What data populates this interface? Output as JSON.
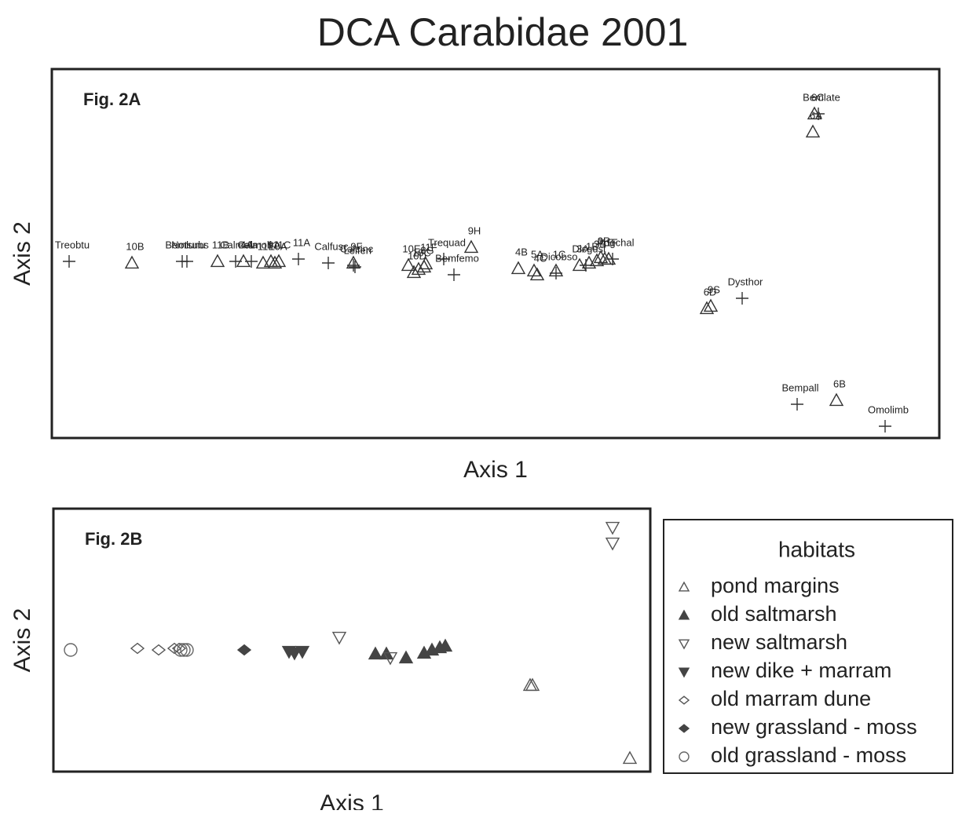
{
  "title": "DCA Carabidae 2001",
  "chart_data": [
    {
      "type": "scatter",
      "annotation": "Fig. 2A",
      "x_label": "Axis 1",
      "y_label": "Axis 2",
      "xlim": [
        0,
        1130
      ],
      "ylim": [
        0,
        470
      ],
      "color": "#333333",
      "points": [
        {
          "label": "Treobtu",
          "marker": "plus",
          "x": 22,
          "y": 225
        },
        {
          "label": "10B",
          "marker": "triangle-open",
          "x": 102,
          "y": 223
        },
        {
          "label": "Bemlunu",
          "marker": "plus",
          "x": 166,
          "y": 225
        },
        {
          "label": "Notsubs",
          "marker": "plus",
          "x": 172,
          "y": 225
        },
        {
          "label": "11B",
          "marker": "triangle-open",
          "x": 211,
          "y": 225
        },
        {
          "label": "Calmela",
          "marker": "plus",
          "x": 234,
          "y": 225
        },
        {
          "label": "4A",
          "marker": "triangle-open",
          "x": 244,
          "y": 225
        },
        {
          "label": "Calmoll",
          "marker": "plus",
          "x": 254,
          "y": 225
        },
        {
          "label": "11E",
          "marker": "triangle-open",
          "x": 269,
          "y": 223
        },
        {
          "label": "9A",
          "marker": "triangle-open",
          "x": 279,
          "y": 225
        },
        {
          "label": "10A",
          "marker": "triangle-open",
          "x": 284,
          "y": 223
        },
        {
          "label": "11C",
          "marker": "triangle-open",
          "x": 289,
          "y": 225
        },
        {
          "label": "11A",
          "marker": "plus",
          "x": 314,
          "y": 228
        },
        {
          "label": "Calfusc",
          "marker": "plus",
          "x": 352,
          "y": 223
        },
        {
          "label": "9F",
          "marker": "triangle-open",
          "x": 384,
          "y": 223
        },
        {
          "label": "Calcinc",
          "marker": "plus",
          "x": 384,
          "y": 220
        },
        {
          "label": "Leiferr",
          "marker": "plus",
          "x": 386,
          "y": 218
        },
        {
          "label": "10E",
          "marker": "triangle-open",
          "x": 454,
          "y": 220
        },
        {
          "label": "10D",
          "marker": "triangle-open",
          "x": 461,
          "y": 211
        },
        {
          "label": "10C",
          "marker": "triangle-open",
          "x": 467,
          "y": 215
        },
        {
          "label": "8G",
          "marker": "triangle-open",
          "x": 474,
          "y": 218
        },
        {
          "label": "11F",
          "marker": "triangle-open",
          "x": 476,
          "y": 222
        },
        {
          "label": "Trequad",
          "marker": "plus",
          "x": 499,
          "y": 228
        },
        {
          "label": "Bemfemo",
          "marker": "plus",
          "x": 512,
          "y": 208
        },
        {
          "label": "9H",
          "marker": "triangle-open",
          "x": 534,
          "y": 243
        },
        {
          "label": "4B",
          "marker": "triangle-open",
          "x": 594,
          "y": 216
        },
        {
          "label": "5A",
          "marker": "triangle-open",
          "x": 614,
          "y": 213
        },
        {
          "label": "4C",
          "marker": "triangle-open",
          "x": 618,
          "y": 208
        },
        {
          "label": "1C",
          "marker": "triangle-open",
          "x": 642,
          "y": 213
        },
        {
          "label": "Dicobso",
          "marker": "plus",
          "x": 642,
          "y": 210
        },
        {
          "label": "3A",
          "marker": "triangle-open",
          "x": 672,
          "y": 220
        },
        {
          "label": "Dicgust",
          "marker": "plus",
          "x": 680,
          "y": 220
        },
        {
          "label": "1B",
          "marker": "triangle-open",
          "x": 684,
          "y": 223
        },
        {
          "label": "3B",
          "marker": "triangle-open",
          "x": 694,
          "y": 226
        },
        {
          "label": "3R",
          "marker": "triangle-open",
          "x": 699,
          "y": 230
        },
        {
          "label": "1E",
          "marker": "triangle-open",
          "x": 704,
          "y": 228
        },
        {
          "label": "1F",
          "marker": "triangle-open",
          "x": 709,
          "y": 228
        },
        {
          "label": "Pogchal",
          "marker": "plus",
          "x": 714,
          "y": 228
        },
        {
          "label": "6D",
          "marker": "triangle-open",
          "x": 834,
          "y": 165
        },
        {
          "label": "9S",
          "marker": "triangle-open",
          "x": 839,
          "y": 168
        },
        {
          "label": "Dysthor",
          "marker": "plus",
          "x": 879,
          "y": 178
        },
        {
          "label": "6A",
          "marker": "triangle-open",
          "x": 969,
          "y": 390
        },
        {
          "label": "6C",
          "marker": "triangle-open",
          "x": 971,
          "y": 413
        },
        {
          "label": "Bemlate",
          "marker": "plus",
          "x": 976,
          "y": 413
        },
        {
          "label": "Bempall",
          "marker": "plus",
          "x": 949,
          "y": 43
        },
        {
          "label": "6B",
          "marker": "triangle-open",
          "x": 999,
          "y": 48
        },
        {
          "label": "Omolimb",
          "marker": "plus",
          "x": 1061,
          "y": 15
        }
      ]
    },
    {
      "type": "scatter",
      "annotation": "Fig. 2B",
      "x_label": "Axis 1",
      "y_label": "Axis 2",
      "xlim": [
        0,
        760
      ],
      "ylim": [
        0,
        335
      ],
      "legend_title": "habitats",
      "legend": "right",
      "series": [
        {
          "name": "pond margins",
          "marker": "triangle-open",
          "color": "#555555",
          "x": [
            607,
            610,
            734
          ],
          "y": [
            110,
            110,
            17
          ]
        },
        {
          "name": "old saltmarsh",
          "marker": "triangle-filled",
          "color": "#444444",
          "x": [
            410,
            424,
            449,
            472,
            482,
            492,
            499
          ],
          "y": [
            150,
            150,
            145,
            151,
            155,
            158,
            160
          ]
        },
        {
          "name": "new saltmarsh",
          "marker": "down-open",
          "color": "#555555",
          "x": [
            712,
            712,
            364,
            429
          ],
          "y": [
            311,
            291,
            171,
            145
          ]
        },
        {
          "name": "new dike + marram",
          "marker": "down-filled",
          "color": "#444444",
          "x": [
            300,
            307,
            317
          ],
          "y": [
            153,
            151,
            153
          ]
        },
        {
          "name": "old marram dune",
          "marker": "diamond-open",
          "color": "#555555",
          "x": [
            107,
            134,
            154,
            160
          ],
          "y": [
            157,
            155,
            157,
            157
          ]
        },
        {
          "name": "new grassland - moss",
          "marker": "diamond-filled",
          "color": "#444444",
          "x": [
            243
          ],
          "y": [
            155
          ]
        },
        {
          "name": "old grassland - moss",
          "marker": "circle-open",
          "color": "#666666",
          "x": [
            22,
            170,
            166,
            162
          ],
          "y": [
            155,
            155,
            155,
            155
          ]
        }
      ]
    }
  ]
}
